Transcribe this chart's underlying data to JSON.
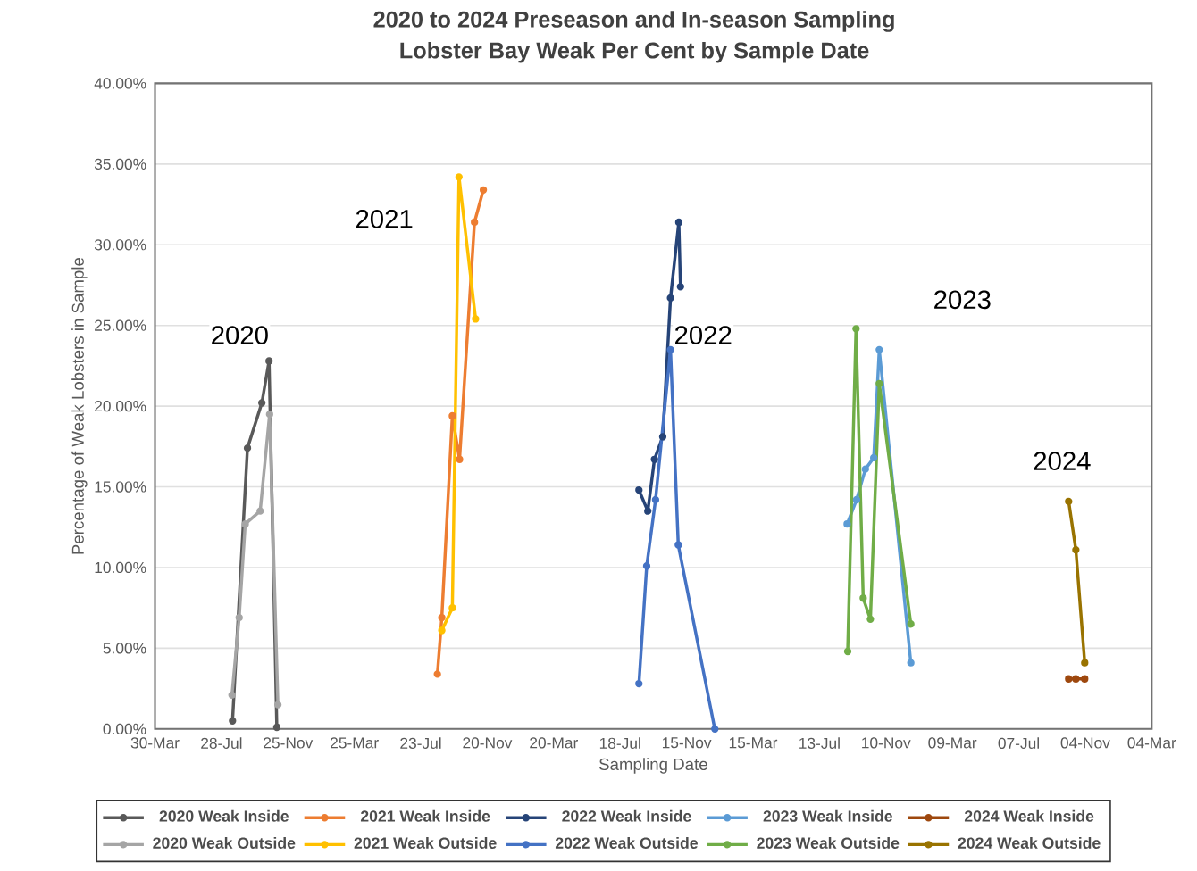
{
  "chart_data": {
    "type": "line",
    "title": "2020 to 2024 Preseason and In-season Sampling",
    "subtitle": "Lobster Bay Weak Per Cent by Sample Date",
    "xlabel": "Sampling Date",
    "ylabel": "Percentage of Weak Lobsters in Sample",
    "xlim": [
      "2020-03-30",
      "2025-03-04"
    ],
    "xticks": [
      {
        "value": "2020-03-30",
        "label": "30-Mar"
      },
      {
        "value": "2020-07-28",
        "label": "28-Jul"
      },
      {
        "value": "2020-11-25",
        "label": "25-Nov"
      },
      {
        "value": "2021-03-25",
        "label": "25-Mar"
      },
      {
        "value": "2021-07-23",
        "label": "23-Jul"
      },
      {
        "value": "2021-11-20",
        "label": "20-Nov"
      },
      {
        "value": "2022-03-20",
        "label": "20-Mar"
      },
      {
        "value": "2022-07-18",
        "label": "18-Jul"
      },
      {
        "value": "2022-11-15",
        "label": "15-Nov"
      },
      {
        "value": "2023-03-15",
        "label": "15-Mar"
      },
      {
        "value": "2023-07-13",
        "label": "13-Jul"
      },
      {
        "value": "2023-11-10",
        "label": "10-Nov"
      },
      {
        "value": "2024-03-09",
        "label": "09-Mar"
      },
      {
        "value": "2024-07-07",
        "label": "07-Jul"
      },
      {
        "value": "2024-11-04",
        "label": "04-Nov"
      },
      {
        "value": "2025-03-04",
        "label": "04-Mar"
      }
    ],
    "ylim": [
      0,
      40
    ],
    "yticks": [
      {
        "value": 0,
        "label": "0.00%"
      },
      {
        "value": 5,
        "label": "5.00%"
      },
      {
        "value": 10,
        "label": "10.00%"
      },
      {
        "value": 15,
        "label": "15.00%"
      },
      {
        "value": 20,
        "label": "20.00%"
      },
      {
        "value": 25,
        "label": "25.00%"
      },
      {
        "value": 30,
        "label": "30.00%"
      },
      {
        "value": 35,
        "label": "35.00%"
      },
      {
        "value": 40,
        "label": "40.00%"
      }
    ],
    "grid": "y",
    "legend": "bottom",
    "marker": "circle",
    "line_style": "solid",
    "series": [
      {
        "name": "2020 Weak Inside",
        "color": "#595959",
        "x": [
          "2020-08-17",
          "2020-09-13",
          "2020-10-09",
          "2020-10-22",
          "2020-11-05"
        ],
        "values": [
          0.5,
          17.4,
          20.2,
          22.8,
          0.1
        ]
      },
      {
        "name": "2021 Weak Inside",
        "color": "#ed7d31",
        "x": [
          "2021-08-22",
          "2021-08-30",
          "2021-09-18",
          "2021-10-01",
          "2021-10-28",
          "2021-11-13"
        ],
        "values": [
          3.4,
          6.9,
          19.4,
          16.7,
          31.4,
          33.4
        ]
      },
      {
        "name": "2022 Weak Inside",
        "color": "#264478",
        "x": [
          "2022-08-21",
          "2022-09-06",
          "2022-09-18",
          "2022-10-03",
          "2022-10-17",
          "2022-11-01",
          "2022-11-04"
        ],
        "values": [
          14.8,
          13.5,
          16.7,
          18.1,
          26.7,
          31.4,
          27.4
        ]
      },
      {
        "name": "2023 Weak Inside",
        "color": "#5b9bd5",
        "x": [
          "2023-09-01",
          "2023-09-18",
          "2023-10-04",
          "2023-10-19",
          "2023-10-29",
          "2023-12-25"
        ],
        "values": [
          12.7,
          14.2,
          16.1,
          16.8,
          23.5,
          4.1
        ]
      },
      {
        "name": "2024 Weak Inside",
        "color": "#9e480e",
        "x": [
          "2024-10-05",
          "2024-10-18",
          "2024-11-03"
        ],
        "values": [
          3.1,
          3.1,
          3.1
        ]
      },
      {
        "name": "2020 Weak Outside",
        "color": "#a5a5a5",
        "x": [
          "2020-08-16",
          "2020-08-29",
          "2020-09-09",
          "2020-10-06",
          "2020-10-23",
          "2020-11-07"
        ],
        "values": [
          2.1,
          6.9,
          12.7,
          13.5,
          19.5,
          1.5
        ]
      },
      {
        "name": "2021 Weak Outside",
        "color": "#ffc000",
        "x": [
          "2021-08-30",
          "2021-09-18",
          "2021-09-30",
          "2021-10-30"
        ],
        "values": [
          6.1,
          7.5,
          34.2,
          25.4
        ]
      },
      {
        "name": "2022 Weak Outside",
        "color": "#4472c4",
        "x": [
          "2022-08-21",
          "2022-09-04",
          "2022-09-20",
          "2022-10-17",
          "2022-10-31",
          "2023-01-05"
        ],
        "values": [
          2.8,
          10.1,
          14.2,
          23.5,
          11.4,
          0
        ]
      },
      {
        "name": "2023 Weak Outside",
        "color": "#70ad47",
        "x": [
          "2023-09-02",
          "2023-09-17",
          "2023-09-30",
          "2023-10-13",
          "2023-10-29",
          "2023-12-25"
        ],
        "values": [
          4.8,
          24.8,
          8.1,
          6.8,
          21.4,
          6.5
        ]
      },
      {
        "name": "2024 Weak Outside",
        "color": "#997300",
        "x": [
          "2024-10-05",
          "2024-10-18",
          "2024-11-03"
        ],
        "values": [
          14.1,
          11.1,
          4.1
        ]
      }
    ],
    "annotations": [
      "2020",
      "2021",
      "2022",
      "2023",
      "2024"
    ]
  }
}
